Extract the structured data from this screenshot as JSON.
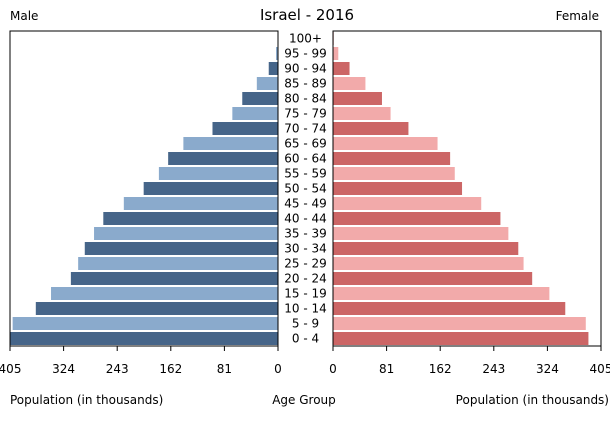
{
  "chart_data": {
    "type": "bar",
    "title": "Israel - 2016",
    "left_header": "Male",
    "right_header": "Female",
    "xlabel_left": "Population (in thousands)",
    "xlabel_center": "Age Group",
    "xlabel_right": "Population (in thousands)",
    "xlim": [
      0,
      405
    ],
    "ticks": [
      405,
      324,
      243,
      162,
      81,
      0
    ],
    "grid": false,
    "categories": [
      "100+",
      "95 - 99",
      "90 - 94",
      "85 - 89",
      "80 - 84",
      "75 - 79",
      "70 - 74",
      "65 - 69",
      "60 - 64",
      "55 - 59",
      "50 - 54",
      "45 - 49",
      "40 - 44",
      "35 - 39",
      "30 - 34",
      "25 - 29",
      "20 - 24",
      "15 - 19",
      "10 - 14",
      "5 - 9",
      "0 - 4"
    ],
    "series": [
      {
        "name": "Male",
        "values": [
          0.5,
          3,
          14,
          32,
          54,
          69,
          99,
          143,
          166,
          180,
          203,
          233,
          264,
          278,
          292,
          302,
          313,
          343,
          366,
          401,
          405
        ],
        "colors": [
          "#466589",
          "#8aaacc"
        ]
      },
      {
        "name": "Female",
        "values": [
          1,
          8,
          25,
          49,
          74,
          87,
          114,
          158,
          177,
          184,
          195,
          224,
          253,
          265,
          280,
          288,
          301,
          327,
          351,
          382,
          386
        ],
        "colors": [
          "#cc6666",
          "#f2aaaa"
        ]
      }
    ]
  }
}
